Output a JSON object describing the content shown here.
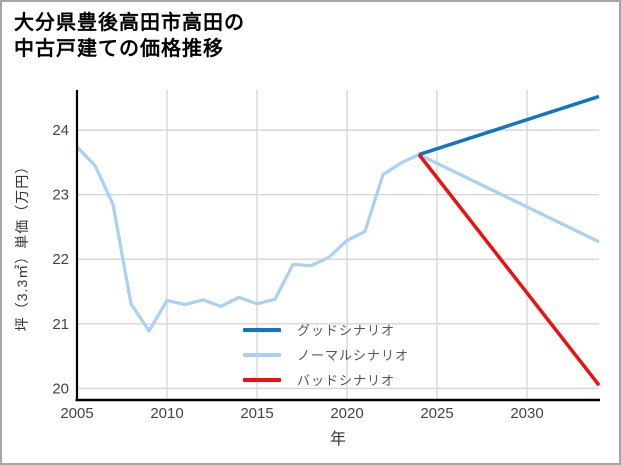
{
  "title": {
    "line1": "大分県豊後高田市高田の",
    "line2": "中古戸建ての価格推移"
  },
  "chart_data": {
    "type": "line",
    "title": "大分県豊後高田市高田の中古戸建ての価格推移",
    "xlabel": "年",
    "ylabel": "坪（3.3㎡）単価（万円）",
    "xlim": [
      2005,
      2034
    ],
    "ylim": [
      19.82,
      24.62
    ],
    "x_ticks": [
      2005,
      2010,
      2015,
      2020,
      2025,
      2030
    ],
    "y_ticks": [
      20,
      21,
      22,
      23,
      24
    ],
    "grid": true,
    "colors": {
      "grid": "#d4d4d4",
      "axis": "#000000",
      "tick_label": "#444444",
      "legend_text": "#555555"
    },
    "legend": {
      "position": "lower-left-inside",
      "entries": [
        "グッドシナリオ",
        "ノーマルシナリオ",
        "バッドシナリオ"
      ]
    },
    "series": [
      {
        "name": "グッドシナリオ",
        "color": "#1274c5",
        "x": [
          2024,
          2034
        ],
        "y": [
          23.62,
          24.52
        ]
      },
      {
        "name": "ノーマルシナリオ",
        "color": "#a9d1f5",
        "x": [
          2005,
          2006,
          2007,
          2008,
          2009,
          2010,
          2011,
          2012,
          2013,
          2014,
          2015,
          2016,
          2017,
          2018,
          2019,
          2020,
          2021,
          2022,
          2023,
          2024,
          2034
        ],
        "y": [
          23.74,
          23.45,
          22.85,
          21.31,
          20.89,
          21.36,
          21.3,
          21.37,
          21.27,
          21.41,
          21.31,
          21.38,
          21.92,
          21.9,
          22.03,
          22.29,
          22.43,
          23.31,
          23.49,
          23.62,
          22.27
        ]
      },
      {
        "name": "バッドシナリオ",
        "color": "#ee1010",
        "x": [
          2024,
          2034
        ],
        "y": [
          23.62,
          20.05
        ]
      }
    ]
  }
}
